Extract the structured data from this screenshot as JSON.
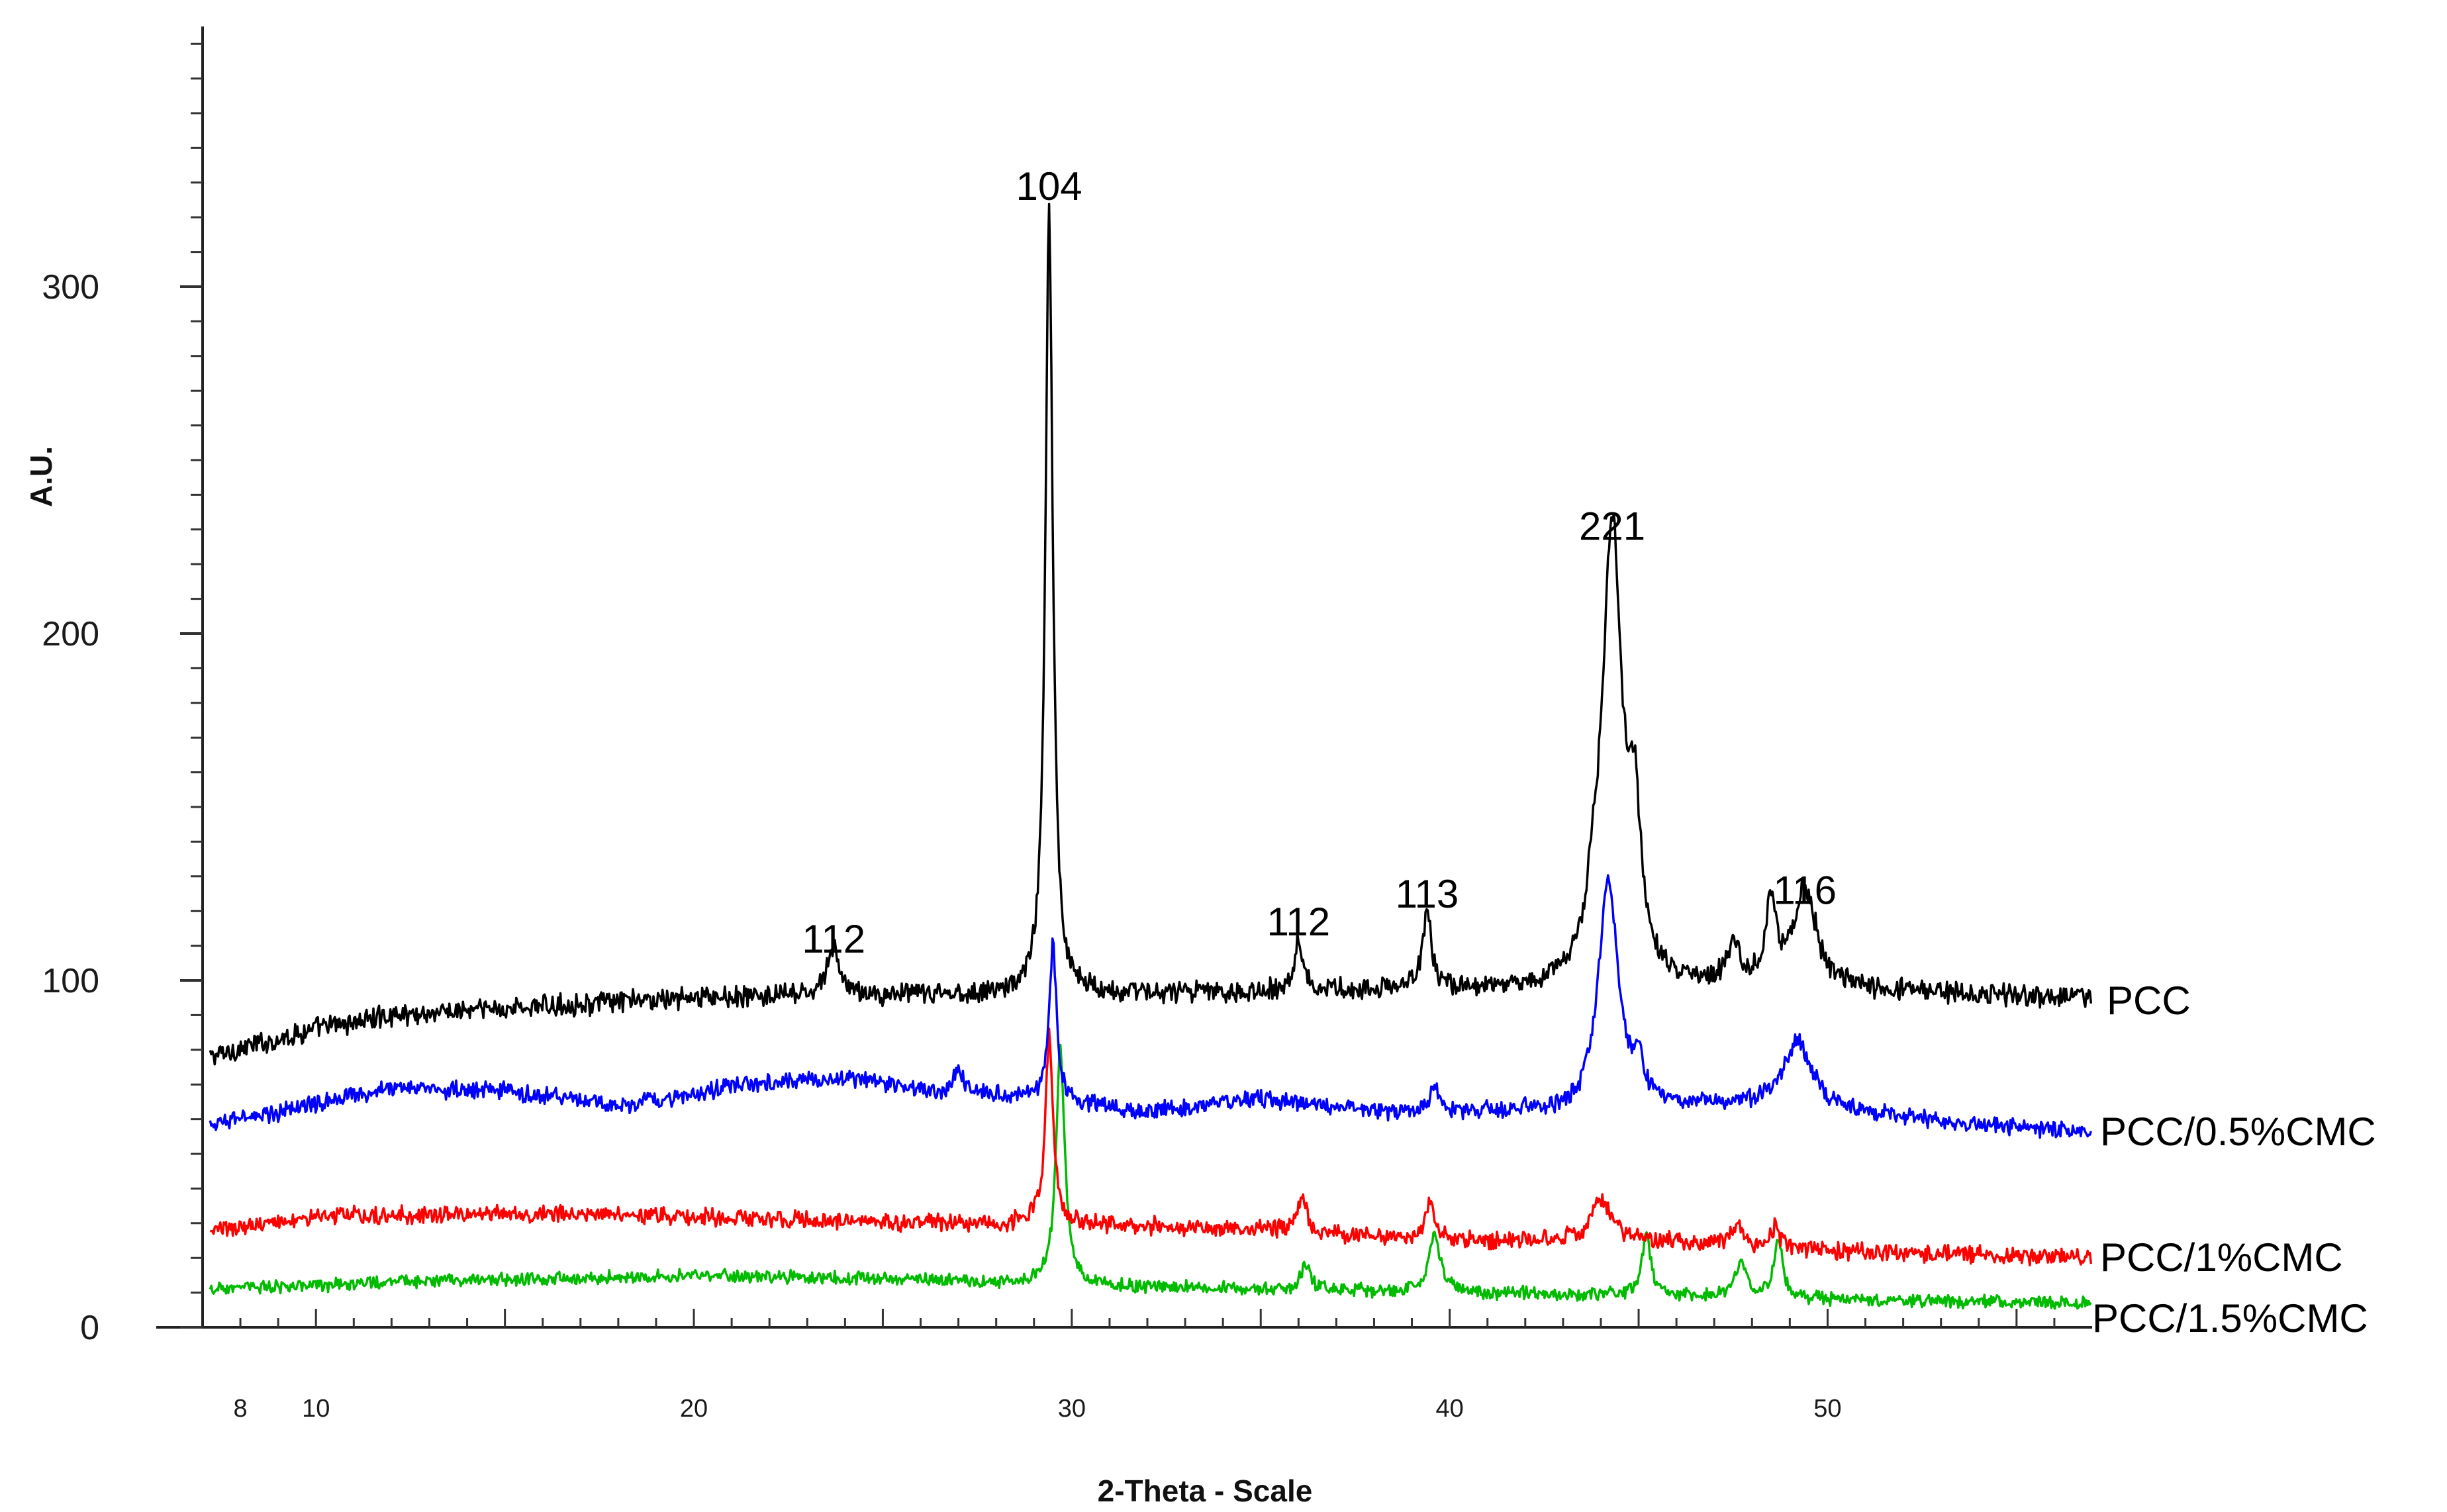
{
  "chart_data": {
    "type": "line",
    "title": "",
    "xlabel": "2-Theta - Scale",
    "ylabel": "A.U.",
    "xlim": [
      7,
      57
    ],
    "ylim": [
      0,
      375
    ],
    "x_ticks": [
      8,
      10,
      20,
      30,
      40,
      50
    ],
    "y_ticks": [
      0,
      100,
      200,
      300
    ],
    "grid": false,
    "series": [
      {
        "name": "PCC",
        "color": "#000000",
        "baseline": [
          [
            7.2,
            78
          ],
          [
            10,
            86
          ],
          [
            12,
            90
          ],
          [
            20,
            95
          ],
          [
            30,
            96
          ],
          [
            40,
            97
          ],
          [
            50,
            97
          ],
          [
            57,
            95
          ]
        ],
        "noise": 2.5,
        "peaks": [
          [
            23.7,
            14,
            0.2
          ],
          [
            29.4,
            225,
            0.12
          ],
          [
            36.0,
            15,
            0.15
          ],
          [
            39.4,
            22,
            0.15
          ],
          [
            43.8,
            12,
            0.2
          ],
          [
            44.3,
            132,
            0.32
          ],
          [
            44.9,
            40,
            0.18
          ],
          [
            47.5,
            12,
            0.2
          ],
          [
            48.5,
            23,
            0.18
          ],
          [
            49.4,
            29,
            0.35
          ]
        ],
        "peak_labels": [
          {
            "text": "112",
            "x": 23.7,
            "y": 108
          },
          {
            "text": "104",
            "x": 29.4,
            "y": 325
          },
          {
            "text": "112",
            "x": 36.0,
            "y": 113
          },
          {
            "text": "113",
            "x": 39.4,
            "y": 121
          },
          {
            "text": "221",
            "x": 44.3,
            "y": 227
          },
          {
            "text": "116",
            "x": 49.4,
            "y": 122
          }
        ]
      },
      {
        "name": "PCC/0.5%CMC",
        "color": "#0000ff",
        "baseline": [
          [
            7.2,
            58
          ],
          [
            9,
            62
          ],
          [
            12,
            69
          ],
          [
            15,
            68
          ],
          [
            18,
            64
          ],
          [
            22,
            71
          ],
          [
            24,
            72
          ],
          [
            26,
            68
          ],
          [
            29,
            66
          ],
          [
            32,
            62
          ],
          [
            35,
            66
          ],
          [
            38,
            62
          ],
          [
            42,
            62
          ],
          [
            43.5,
            60
          ],
          [
            47,
            64
          ],
          [
            50,
            62
          ],
          [
            57,
            56
          ]
        ],
        "noise": 2.0,
        "peaks": [
          [
            27.0,
            7,
            0.15
          ],
          [
            29.5,
            45,
            0.12
          ],
          [
            39.6,
            7,
            0.15
          ],
          [
            44.2,
            67,
            0.33
          ],
          [
            45.0,
            10,
            0.18
          ],
          [
            49.2,
            20,
            0.45
          ]
        ]
      },
      {
        "name": "PCC/1%CMC",
        "color": "#ff0000",
        "baseline": [
          [
            7.2,
            28
          ],
          [
            10,
            32
          ],
          [
            15,
            33
          ],
          [
            20,
            32
          ],
          [
            25,
            30
          ],
          [
            30,
            30
          ],
          [
            35,
            28
          ],
          [
            40,
            25
          ],
          [
            45,
            25
          ],
          [
            50,
            22
          ],
          [
            57,
            20
          ]
        ],
        "noise": 2.0,
        "peaks": [
          [
            29.4,
            54,
            0.12
          ],
          [
            36.1,
            10,
            0.15
          ],
          [
            39.5,
            11,
            0.15
          ],
          [
            44.0,
            12,
            0.3
          ],
          [
            47.6,
            7,
            0.15
          ],
          [
            48.6,
            6,
            0.15
          ]
        ]
      },
      {
        "name": "PCC/1.5%CMC",
        "color": "#00bb00",
        "baseline": [
          [
            7.2,
            11
          ],
          [
            12,
            13
          ],
          [
            20,
            15
          ],
          [
            25,
            14
          ],
          [
            30,
            12
          ],
          [
            35,
            11
          ],
          [
            40,
            10
          ],
          [
            45,
            9
          ],
          [
            50,
            8
          ],
          [
            57,
            7
          ]
        ],
        "noise": 1.5,
        "peaks": [
          [
            29.7,
            68,
            0.14
          ],
          [
            36.2,
            7,
            0.15
          ],
          [
            39.6,
            17,
            0.18
          ],
          [
            45.2,
            18,
            0.14
          ],
          [
            47.7,
            10,
            0.18
          ],
          [
            48.7,
            16,
            0.15
          ]
        ]
      }
    ]
  }
}
